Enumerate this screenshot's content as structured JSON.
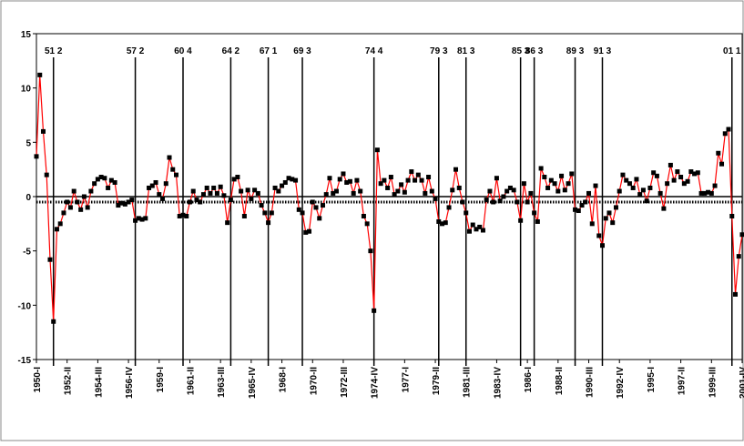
{
  "chart_data": {
    "type": "line",
    "categories": [
      "1950-I",
      null,
      null,
      null,
      null,
      null,
      null,
      null,
      null,
      "1952-II",
      null,
      null,
      null,
      null,
      null,
      null,
      null,
      null,
      "1954-III",
      null,
      null,
      null,
      null,
      null,
      null,
      null,
      null,
      "1956-IV",
      null,
      null,
      null,
      null,
      null,
      null,
      null,
      null,
      "1959-I",
      null,
      null,
      null,
      null,
      null,
      null,
      null,
      null,
      "1961-II",
      null,
      null,
      null,
      null,
      null,
      null,
      null,
      null,
      "1963-III",
      null,
      null,
      null,
      null,
      null,
      null,
      null,
      null,
      "1965-IV",
      null,
      null,
      null,
      null,
      null,
      null,
      null,
      null,
      "1968-I",
      null,
      null,
      null,
      null,
      null,
      null,
      null,
      null,
      "1970-II",
      null,
      null,
      null,
      null,
      null,
      null,
      null,
      null,
      "1972-III",
      null,
      null,
      null,
      null,
      null,
      null,
      null,
      null,
      "1974-IV",
      null,
      null,
      null,
      null,
      null,
      null,
      null,
      null,
      "1977-I",
      null,
      null,
      null,
      null,
      null,
      null,
      null,
      null,
      "1979-II",
      null,
      null,
      null,
      null,
      null,
      null,
      null,
      null,
      "1981-III",
      null,
      null,
      null,
      null,
      null,
      null,
      null,
      null,
      "1983-IV",
      null,
      null,
      null,
      null,
      null,
      null,
      null,
      null,
      "1986-I",
      null,
      null,
      null,
      null,
      null,
      null,
      null,
      null,
      "1988-II",
      null,
      null,
      null,
      null,
      null,
      null,
      null,
      null,
      "1990-III",
      null,
      null,
      null,
      null,
      null,
      null,
      null,
      null,
      "1992-IV",
      null,
      null,
      null,
      null,
      null,
      null,
      null,
      null,
      "1995-I",
      null,
      null,
      null,
      null,
      null,
      null,
      null,
      null,
      "1997-II",
      null,
      null,
      null,
      null,
      null,
      null,
      null,
      null,
      "1999-III",
      null,
      null,
      null,
      null,
      null,
      null,
      null,
      null,
      "2001-IV"
    ],
    "values": [
      3.7,
      11.2,
      6,
      2,
      -5.8,
      -11.5,
      -3,
      -2.5,
      -1.5,
      -0.5,
      -1,
      0.5,
      -0.5,
      -1.2,
      0,
      -1,
      0.5,
      1.2,
      1.6,
      1.8,
      1.7,
      0.8,
      1.5,
      1.3,
      -0.8,
      -0.6,
      -0.7,
      -0.5,
      -0.3,
      -2.2,
      -2,
      -2.1,
      -2,
      0.8,
      1,
      1.3,
      0.2,
      -0.2,
      1.2,
      3.6,
      2.5,
      2,
      -1.8,
      -1.7,
      -1.8,
      -0.5,
      0.5,
      -0.3,
      -0.5,
      0.2,
      0.8,
      0.3,
      0.8,
      0.3,
      0.9,
      0.1,
      -2.4,
      -0.3,
      1.6,
      1.8,
      0.5,
      -1.8,
      0.6,
      -0.2,
      0.6,
      0.3,
      -0.8,
      -1.5,
      -2.4,
      -1.5,
      0.8,
      0.5,
      1,
      1.3,
      1.7,
      1.6,
      1.5,
      -1.2,
      -1.5,
      -3.3,
      -3.2,
      -0.5,
      -1,
      -2,
      -0.8,
      0.2,
      1.7,
      0.3,
      0.5,
      1.6,
      2.1,
      1.3,
      1.4,
      0.3,
      1.5,
      0.5,
      -1.8,
      -2.5,
      -5,
      -10.5,
      4.3,
      1.2,
      1.5,
      0.8,
      1.8,
      0.2,
      0.5,
      1.1,
      0.4,
      1.5,
      2.3,
      1.5,
      2,
      1.5,
      0.3,
      1.8,
      0.5,
      -0.2,
      -2.3,
      -2.5,
      -2.4,
      -1,
      0.6,
      2.5,
      0.8,
      -0.5,
      -1.5,
      -3.2,
      -2.6,
      -3,
      -2.8,
      -3.1,
      -0.3,
      0.5,
      -0.5,
      1.7,
      -0.4,
      0,
      0.5,
      0.8,
      0.6,
      -0.5,
      -2.2,
      1.2,
      -0.5,
      0.3,
      -1.5,
      -2.3,
      2.6,
      1.8,
      0.8,
      1.5,
      1.2,
      0.5,
      1.9,
      0.6,
      1.2,
      2.1,
      -1.2,
      -1.3,
      -0.8,
      -0.5,
      0.3,
      -2.5,
      1,
      -3.6,
      -4.5,
      -2,
      -1.5,
      -2.4,
      -1,
      0.5,
      2,
      1.5,
      1.2,
      0.8,
      1.6,
      0.2,
      0.6,
      -0.4,
      0.8,
      2.2,
      1.9,
      0.3,
      -1.1,
      1.2,
      2.9,
      1.5,
      2.3,
      1.8,
      1.2,
      1.4,
      2.3,
      2.1,
      2.2,
      0.3,
      0.3,
      0.4,
      0.3,
      1,
      4,
      3,
      5.8,
      6.2,
      -1.8,
      -9,
      -5.5,
      -3.5
    ],
    "color": "#ff0000",
    "marker_color": "#000000",
    "ylim": [
      -15,
      15
    ],
    "yticks": [
      -15,
      -10,
      -5,
      0,
      5,
      10,
      15
    ],
    "reference_line": -0.5,
    "vlines": [
      "51 2",
      "57 2",
      "60 4",
      "64 2",
      "67 1",
      "69 3",
      "74 4",
      "79 3",
      "81 3",
      "85 3",
      "86 3",
      "89 3",
      "91 3",
      "01 1"
    ]
  }
}
